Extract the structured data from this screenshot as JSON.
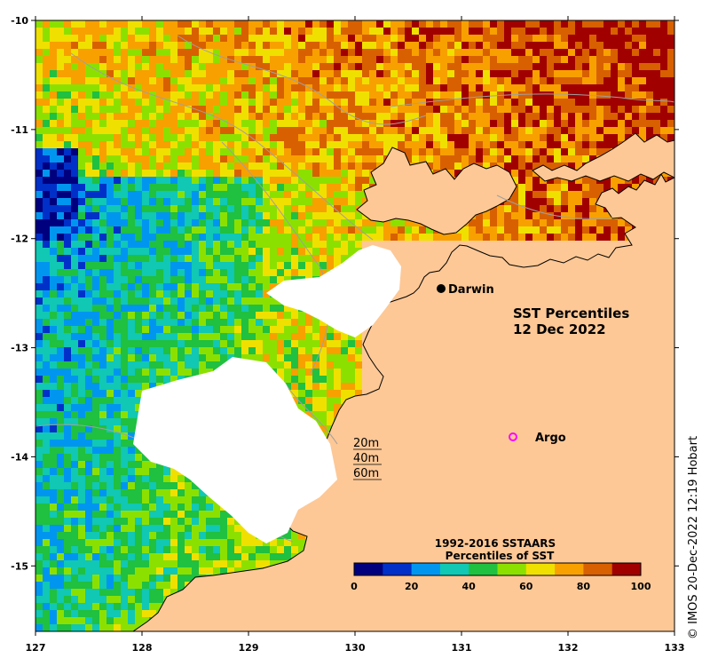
{
  "title": {
    "line1": "SST Percentiles",
    "line2": "12 Dec 2022"
  },
  "lon_ticks": [
    "127",
    "128",
    "129",
    "130",
    "131",
    "132",
    "133"
  ],
  "lat_ticks": [
    "-10",
    "-11",
    "-12",
    "-13",
    "-14",
    "-15"
  ],
  "places": {
    "darwin": "Darwin",
    "argo": "Argo"
  },
  "depth_legend": [
    "20m",
    "40m",
    "60m"
  ],
  "colorbar": {
    "title1": "1992-2016 SSTAARS",
    "title2": "Percentiles of SST",
    "ticks": [
      "0",
      "20",
      "40",
      "60",
      "80",
      "100"
    ],
    "colors": [
      "#00007f",
      "#0030c8",
      "#0096f0",
      "#10c8b4",
      "#20c040",
      "#8ce000",
      "#f0e000",
      "#f8a000",
      "#d86000",
      "#a00000"
    ]
  },
  "credit": "© IMOS 20-Dec-2022 12:19 Hobart",
  "colors": {
    "land": "#fdc896",
    "no_data": "#ffffff",
    "argo_marker": "#ff00ff",
    "bathy_contour": "#a0a0a0"
  },
  "chart_data": {
    "type": "heatmap",
    "title": "SST Percentiles 12 Dec 2022",
    "xlim": [
      127,
      133
    ],
    "ylim": [
      -15.6,
      -10
    ],
    "xticks": [
      127,
      128,
      129,
      130,
      131,
      132,
      133
    ],
    "yticks": [
      -10,
      -11,
      -12,
      -13,
      -14,
      -15
    ],
    "value_range": [
      0,
      100
    ],
    "markers": [
      {
        "label": "Darwin",
        "lon": 130.84,
        "lat": -12.46
      },
      {
        "label": "Argo",
        "lon": 131.5,
        "lat": -13.8
      }
    ]
  }
}
